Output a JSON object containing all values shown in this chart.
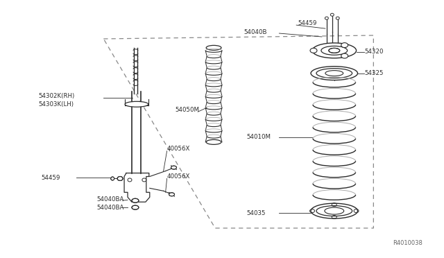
{
  "bg_color": "#ffffff",
  "line_color": "#2a2a2a",
  "text_color": "#2a2a2a",
  "fig_width": 6.4,
  "fig_height": 3.72,
  "dpi": 100,
  "diagram_id": "R4010038",
  "labels": {
    "l_302": "54302K(RH)",
    "l_303": "54303K(LH)",
    "l_459L": "54459",
    "l_40ba1": "54040BA",
    "l_40ba2": "54040BA",
    "l_40056x_t": "40056X",
    "l_40056x_b": "40056X",
    "l_54050m": "54050M",
    "l_54040b": "54040B",
    "l_54459R": "54459",
    "l_54320": "54320",
    "l_54325": "54325",
    "l_54010m": "54010M",
    "l_54035": "54035"
  }
}
